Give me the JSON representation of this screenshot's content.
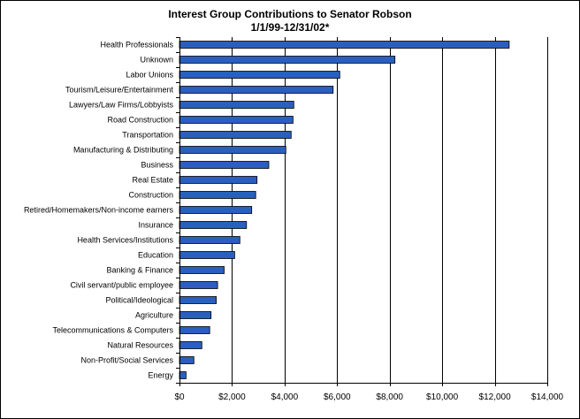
{
  "chart_data": {
    "type": "bar",
    "orientation": "horizontal",
    "title": "Interest Group Contributions to Senator Robson",
    "subtitle": "1/1/99-12/31/02*",
    "xlabel": "",
    "ylabel": "",
    "xlim": [
      0,
      14000
    ],
    "x_ticks": [
      0,
      2000,
      4000,
      6000,
      8000,
      10000,
      12000,
      14000
    ],
    "x_tick_labels": [
      "$0",
      "$2,000",
      "$4,000",
      "$6,000",
      "$8,000",
      "$10,000",
      "$12,000",
      "$14,000"
    ],
    "grid": "vertical major gridlines",
    "legend": "none",
    "bar_color": "#2a5fbf",
    "categories": [
      "Health Professionals",
      "Unknown",
      "Labor Unions",
      "Tourism/Leisure/Entertainment",
      "Lawyers/Law Firms/Lobbyists",
      "Road Construction",
      "Transportation",
      "Manufacturing & Distributing",
      "Business",
      "Real Estate",
      "Construction",
      "Retired/Homemakers/Non-income earners",
      "Insurance",
      "Health Services/Institutions",
      "Education",
      "Banking & Finance",
      "Civil servant/public employee",
      "Political/Ideological",
      "Agriculture",
      "Telecommunications & Computers",
      "Natural Resources",
      "Non-Profit/Social Services",
      "Energy"
    ],
    "values": [
      12550,
      8200,
      6100,
      5850,
      4350,
      4320,
      4250,
      4050,
      3400,
      2950,
      2900,
      2750,
      2550,
      2300,
      2100,
      1700,
      1450,
      1400,
      1200,
      1150,
      850,
      550,
      250
    ]
  }
}
